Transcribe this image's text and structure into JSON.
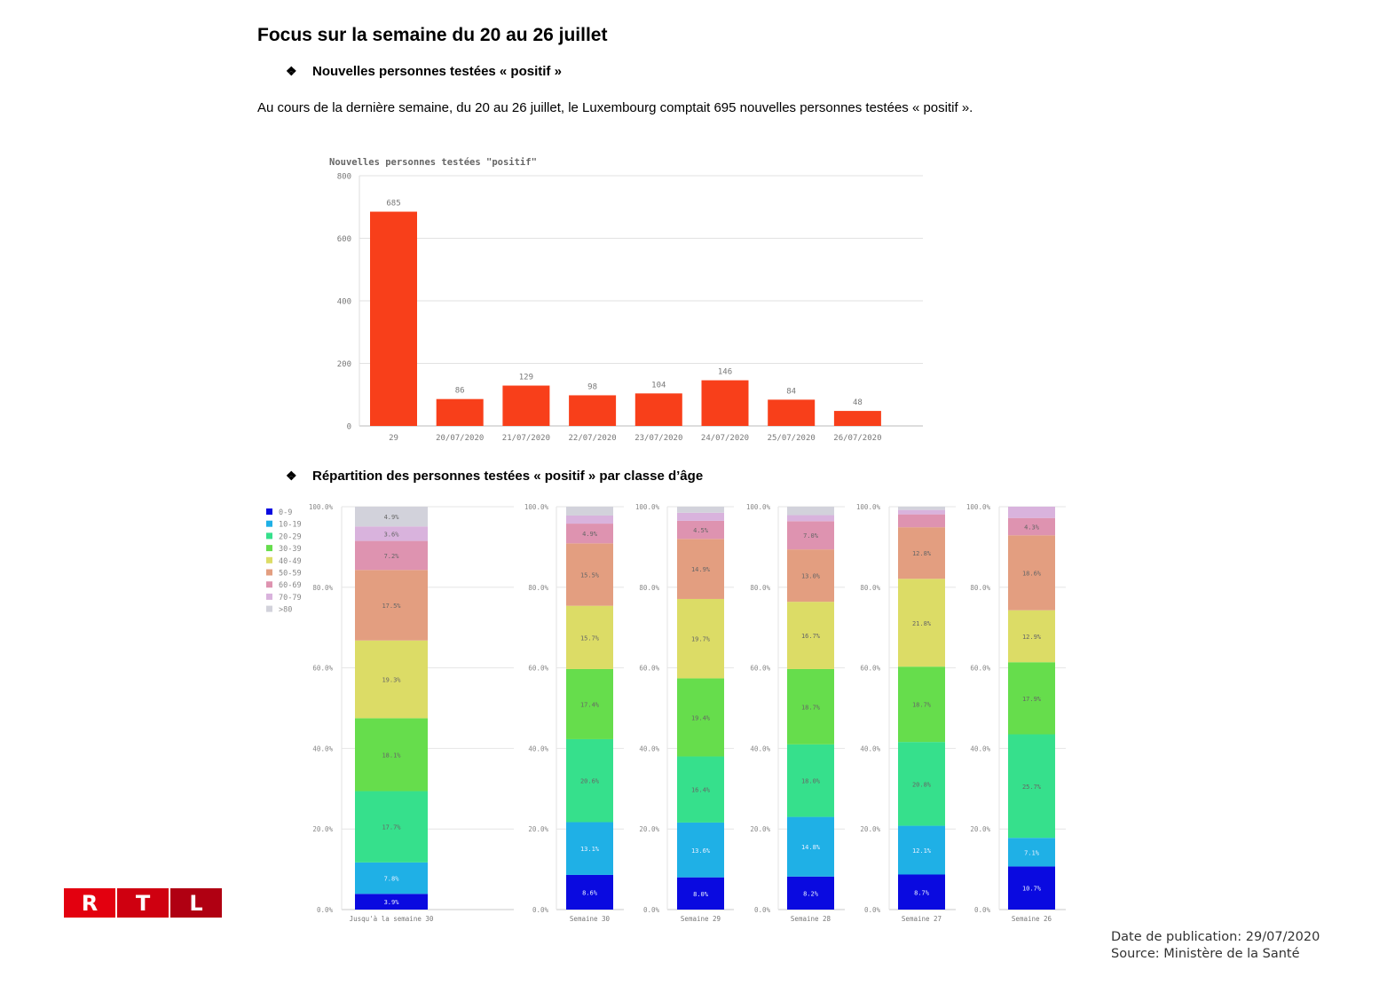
{
  "page": {
    "title": "Focus sur la semaine du 20 au 26 juillet",
    "section1": "Nouvelles personnes testées « positif »",
    "paragraph": "Au cours de la dernière semaine, du 20 au 26 juillet, le Luxembourg comptait 695 nouvelles personnes testées « positif ».",
    "section2": "Répartition des personnes testées « positif » par classe d’âge",
    "bullet_symbol": "❖",
    "footer_date": "Date de publication: 29/07/2020",
    "footer_source": "Source: Ministère de la Santé",
    "logo_letters": [
      "R",
      "T",
      "L"
    ],
    "logo_colors": [
      "#e3000f",
      "#cf0010",
      "#b00012"
    ]
  },
  "chart_data": [
    {
      "type": "bar",
      "title": "Nouvelles personnes testées \"positif\"",
      "categories": [
        "29",
        "20/07/2020",
        "21/07/2020",
        "22/07/2020",
        "23/07/2020",
        "24/07/2020",
        "25/07/2020",
        "26/07/2020"
      ],
      "values": [
        685,
        86,
        129,
        98,
        104,
        146,
        84,
        48
      ],
      "ylim": [
        0,
        800
      ],
      "yticks": [
        0,
        200,
        400,
        600,
        800
      ],
      "color": "#f83f1a",
      "grid": true
    },
    {
      "type": "bar",
      "stacked": true,
      "normalized": true,
      "legend_position": "left",
      "legend": [
        "0-9",
        "10-19",
        "20-29",
        "30-39",
        "40-49",
        "50-59",
        "60-69",
        "70-79",
        ">80"
      ],
      "colors": [
        "#0a0ae0",
        "#1fb0e6",
        "#36e08c",
        "#66dd4c",
        "#dcdc66",
        "#e39e80",
        "#de93b0",
        "#d9b3dd",
        "#d2d2db"
      ],
      "yticks": [
        "0.0%",
        "20.0%",
        "40.0%",
        "60.0%",
        "80.0%",
        "100.0%"
      ],
      "ylim": [
        0,
        100
      ],
      "panels": [
        {
          "category": "Jusqu'à la semaine 30",
          "values": [
            3.9,
            7.8,
            17.7,
            18.1,
            19.3,
            17.5,
            7.2,
            3.6,
            4.9
          ],
          "labels": [
            "3.9%",
            "7.8%",
            "17.7%",
            "18.1%",
            "19.3%",
            "17.5%",
            "7.2%",
            "3.6%",
            "4.9%"
          ]
        },
        {
          "category": "Semaine 30",
          "values": [
            8.6,
            13.1,
            20.6,
            17.4,
            15.7,
            15.5,
            4.9,
            2.0,
            2.2
          ],
          "labels": [
            "8.6%",
            "13.1%",
            "20.6%",
            "17.4%",
            "15.7%",
            "15.5%",
            "4.9%",
            "",
            ""
          ]
        },
        {
          "category": "Semaine 29",
          "values": [
            8.0,
            13.6,
            16.4,
            19.4,
            19.7,
            14.9,
            4.5,
            2.0,
            1.5
          ],
          "labels": [
            "8.0%",
            "13.6%",
            "16.4%",
            "19.4%",
            "19.7%",
            "14.9%",
            "4.5%",
            "",
            ""
          ]
        },
        {
          "category": "Semaine 28",
          "values": [
            8.2,
            14.8,
            18.0,
            18.7,
            16.7,
            13.0,
            7.0,
            1.5,
            2.1
          ],
          "labels": [
            "8.2%",
            "14.8%",
            "18.0%",
            "18.7%",
            "16.7%",
            "13.0%",
            "7.0%",
            "",
            ""
          ]
        },
        {
          "category": "Semaine 27",
          "values": [
            8.7,
            12.1,
            20.8,
            18.7,
            21.8,
            12.8,
            3.2,
            1.1,
            0.8
          ],
          "labels": [
            "8.7%",
            "12.1%",
            "20.8%",
            "18.7%",
            "21.8%",
            "12.8%",
            "",
            "",
            ""
          ]
        },
        {
          "category": "Semaine 26",
          "values": [
            10.7,
            7.1,
            25.7,
            17.9,
            12.9,
            18.6,
            4.3,
            2.8,
            0.0
          ],
          "labels": [
            "10.7%",
            "7.1%",
            "25.7%",
            "17.9%",
            "12.9%",
            "18.6%",
            "4.3%",
            "",
            ""
          ]
        }
      ]
    }
  ]
}
